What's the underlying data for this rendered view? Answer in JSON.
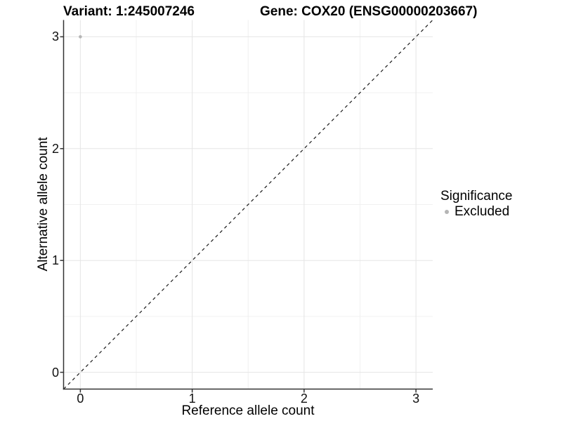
{
  "titles": {
    "variant": "Variant: 1:245007246",
    "gene": "Gene: COX20 (ENSG00000203667)"
  },
  "legend": {
    "title": "Significance",
    "items": [
      {
        "label": "Excluded",
        "color": "#b5b5b5"
      }
    ]
  },
  "chart_data": {
    "type": "scatter",
    "xlabel": "Reference allele count",
    "ylabel": "Alternative allele count",
    "xlim": [
      -0.15,
      3.15
    ],
    "ylim": [
      -0.15,
      3.15
    ],
    "xticks": [
      0,
      1,
      2,
      3
    ],
    "yticks": [
      0,
      1,
      2,
      3
    ],
    "xminor": [
      0.5,
      1.5,
      2.5
    ],
    "yminor": [
      0.5,
      1.5,
      2.5
    ],
    "grid": "major+minor",
    "legend_position": "right",
    "legend_title": "Significance",
    "series": [
      {
        "name": "Excluded",
        "color": "#b5b5b5",
        "points": [
          {
            "x": 0,
            "y": 3
          }
        ]
      }
    ],
    "abline": {
      "slope": 1,
      "intercept": 0,
      "style": "dashed",
      "color": "#1a1a1a"
    },
    "colors": {
      "axis": "#333333",
      "grid_major": "#e5e5e5",
      "grid_minor": "#f0f0f0",
      "background": "#ffffff"
    }
  }
}
